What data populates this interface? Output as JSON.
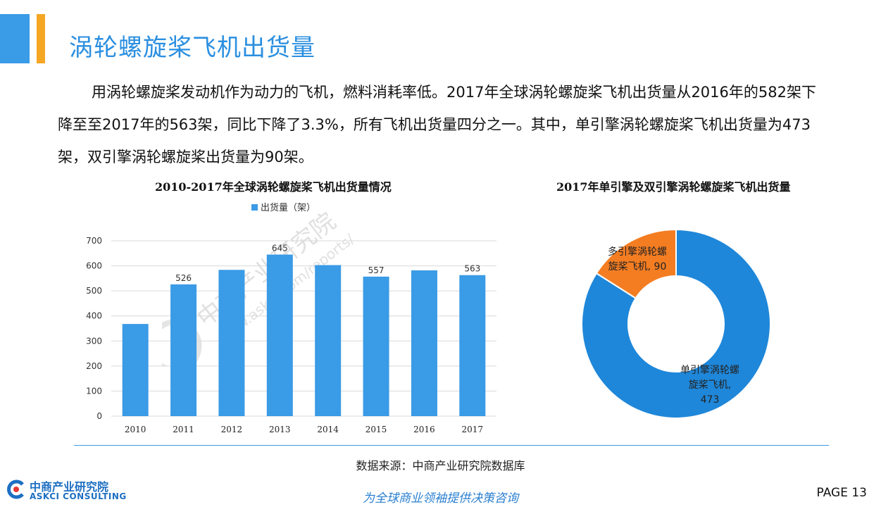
{
  "page": {
    "title": "涡轮螺旋桨飞机出货量",
    "intro": "用涡轮螺旋桨发动机作为动力的飞机，燃料消耗率低。2017年全球涡轮螺旋桨飞机出货量从2016年的582架下降至至2017年的563架，同比下降了3.3%，所有飞机出货量四分之一。其中，单引擎涡轮螺旋桨飞机出货量为473架，双引擎涡轮螺旋桨出货量为90架。",
    "source": "数据来源：中商产业研究院数据库",
    "slogan": "为全球商业领袖提供决策咨询",
    "page_number": "PAGE  13"
  },
  "logo": {
    "name_cn": "中商产业研究院",
    "name_en": "ASKCI CONSULTING"
  },
  "watermark": {
    "text_cn": "中商产业研究院",
    "text_url": "www.askci.com/reports/"
  },
  "colors": {
    "accent_blue": "#3a9be6",
    "accent_orange": "#f5a623",
    "donut_blue": "#1f87d9",
    "donut_orange": "#f47d22"
  },
  "chart_data": [
    {
      "type": "bar",
      "title": "2010-2017年全球涡轮螺旋桨飞机出货量情况",
      "categories": [
        "2010",
        "2011",
        "2012",
        "2013",
        "2014",
        "2015",
        "2016",
        "2017"
      ],
      "series": [
        {
          "name": "出货量（架）",
          "values": [
            368,
            526,
            584,
            645,
            603,
            557,
            582,
            563
          ]
        }
      ],
      "data_labels": [
        "",
        "526",
        "",
        "645",
        "",
        "557",
        "",
        "563"
      ],
      "ylim": [
        0,
        700
      ],
      "yticks": [
        "0",
        "100",
        "200",
        "300",
        "400",
        "500",
        "600",
        "700"
      ],
      "grid": true,
      "legend": "top-center"
    },
    {
      "type": "pie",
      "title": "2017年单引擎及双引擎涡轮螺旋桨飞机出货量",
      "slices": [
        {
          "label_line1": "单引擎涡轮螺",
          "label_line2": "旋桨飞机,",
          "value_text": "473",
          "value": 473
        },
        {
          "label_line1": "多引擎涡轮螺",
          "label_line2": "旋桨飞机,",
          "value_text": "90",
          "value": 90
        }
      ]
    }
  ]
}
